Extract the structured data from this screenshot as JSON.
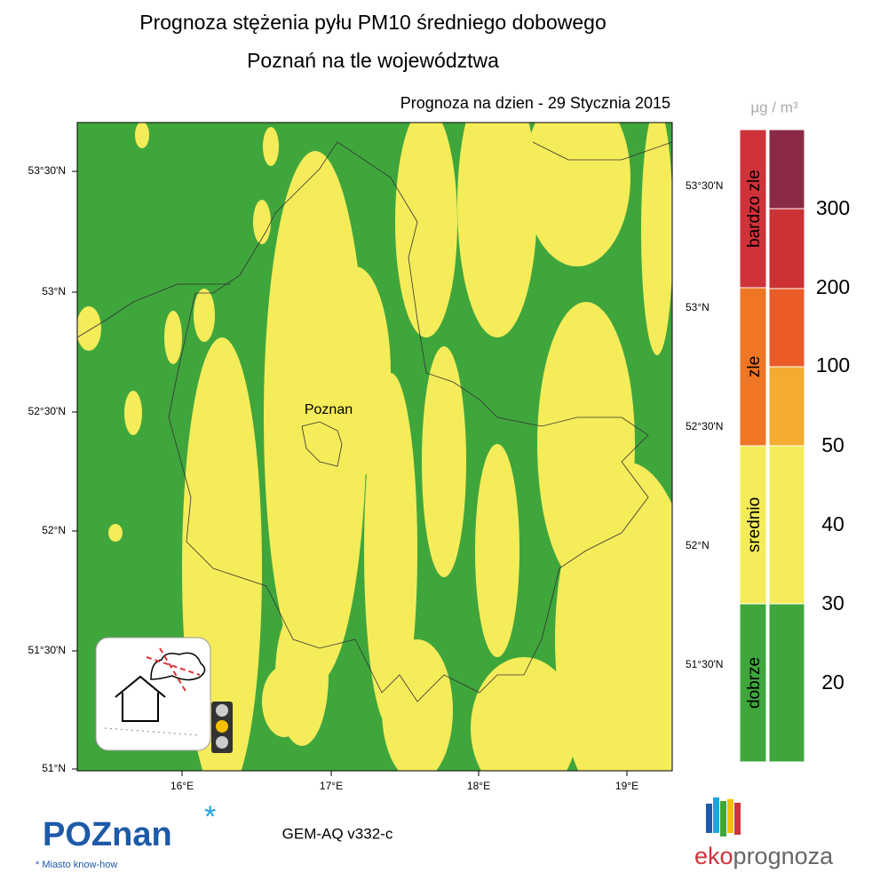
{
  "header": {
    "title": "Prognoza stężenia pyłu PM10 średniego dobowego",
    "subtitle": "Poznań na tle województwa",
    "date": "Prognoza na dzien -  29 Stycznia 2015"
  },
  "map": {
    "lat_labels_left": [
      "53°30'N",
      "53°N",
      "52°30'N",
      "52°N",
      "51°30'N",
      "51°N"
    ],
    "lat_labels_right": [
      "53°30'N",
      "53°N",
      "52°30'N",
      "52°N",
      "51°30'N"
    ],
    "lon_labels": [
      "16°E",
      "17°E",
      "18°E",
      "19°E"
    ],
    "city": "Poznan"
  },
  "legend": {
    "unit": "µg / m³",
    "categories": [
      {
        "label": "bardzo zle",
        "color": "#d0323a"
      },
      {
        "label": "zle",
        "color": "#ee7624"
      },
      {
        "label": "srednio",
        "color": "#f5ec5a"
      },
      {
        "label": "dobrze",
        "color": "#3fa63c"
      }
    ],
    "bands": [
      {
        "color": "#8b2a45"
      },
      {
        "color": "#cc3233"
      },
      {
        "color": "#ea5b27"
      },
      {
        "color": "#f4ac30"
      },
      {
        "color": "#f5ec5a"
      },
      {
        "color": "#3fa63c"
      }
    ],
    "levels": [
      300,
      200,
      100,
      50,
      40,
      30,
      20
    ]
  },
  "footer": {
    "model": "GEM-AQ v332-c",
    "logo_left": "POZnan",
    "tagline": "* Miasto know-how",
    "logo_right_a": "eko",
    "logo_right_b": "prognoza"
  }
}
